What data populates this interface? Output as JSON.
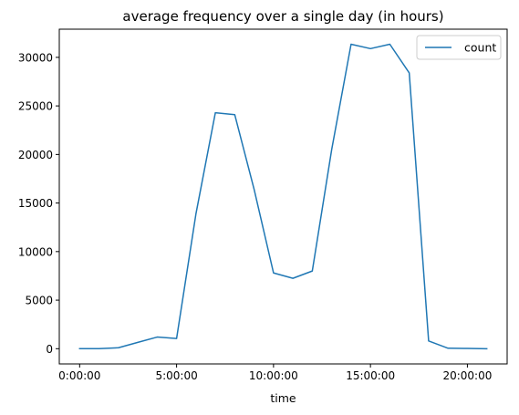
{
  "chart_data": {
    "type": "line",
    "title": "average frequency over a single day (in hours)",
    "xlabel": "time",
    "ylabel": "",
    "x": [
      0,
      1,
      2,
      3,
      4,
      5,
      6,
      7,
      8,
      9,
      10,
      11,
      12,
      13,
      14,
      15,
      16,
      17,
      18,
      19,
      20,
      21
    ],
    "x_unit": "hour",
    "xlim": [
      -1.05,
      22.05
    ],
    "ylim": [
      -1567,
      32900
    ],
    "x_ticks": [
      0,
      5,
      10,
      15,
      20
    ],
    "x_tick_labels": [
      "0:00:00",
      "5:00:00",
      "10:00:00",
      "15:00:00",
      "20:00:00"
    ],
    "y_ticks": [
      0,
      5000,
      10000,
      15000,
      20000,
      25000,
      30000
    ],
    "y_tick_labels": [
      "0",
      "5000",
      "10000",
      "15000",
      "20000",
      "25000",
      "30000"
    ],
    "series": [
      {
        "name": "count",
        "color": "#1f77b4",
        "values": [
          0,
          0,
          100,
          650,
          1200,
          1050,
          13900,
          24300,
          24100,
          16400,
          7800,
          7250,
          8000,
          20500,
          31350,
          30900,
          31350,
          28400,
          800,
          50,
          30,
          0
        ]
      }
    ],
    "legend": {
      "position": "top-right",
      "entries": [
        "count"
      ]
    },
    "grid": false
  }
}
